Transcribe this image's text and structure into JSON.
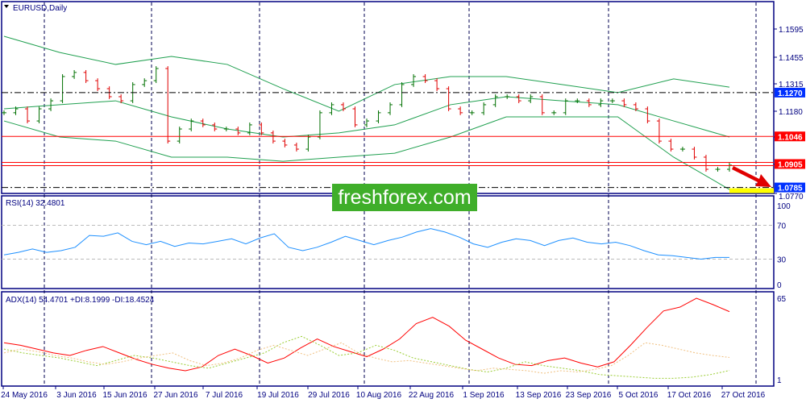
{
  "chart_title": "EURUSD,Daily",
  "watermark": "freshforex.com",
  "colors": {
    "bull_bar": "#007000",
    "bear_bar": "#e00000",
    "bands": "#20a050",
    "level_lines": "#ff0000",
    "rsi": "#1e90ff",
    "adx": "#ff0000",
    "plus_di": "#9acd32",
    "minus_di": "#f0c080",
    "frame": "#000080",
    "highlight": "#ffff00"
  },
  "chart_data": [
    {
      "type": "bar",
      "title": "EURUSD,Daily",
      "ylim": [
        1.077,
        1.173
      ],
      "y_ticks": [
        "1.1595",
        "1.1455",
        "1.1315",
        "1.1180",
        "1.1046",
        "1.0905",
        "1.0785",
        "1.0770"
      ],
      "x_ticks": [
        "24 May 2016",
        "3 Jun 2016",
        "15 Jun 2016",
        "27 Jun 2016",
        "7 Jul 2016",
        "19 Jul 2016",
        "29 Jul 2016",
        "10 Aug 2016",
        "22 Aug 2016",
        "1 Sep 2016",
        "13 Sep 2016",
        "23 Sep 2016",
        "5 Oct 2016",
        "17 Oct 2016",
        "27 Oct 2016"
      ],
      "closes": [
        1.1167,
        1.1187,
        1.1125,
        1.1187,
        1.1228,
        1.1352,
        1.1373,
        1.1331,
        1.129,
        1.1249,
        1.1228,
        1.1311,
        1.1331,
        1.1393,
        1.1022,
        1.1084,
        1.1125,
        1.1105,
        1.1084,
        1.1084,
        1.1064,
        1.1105,
        1.1064,
        1.1022,
        1.1002,
        1.0981,
        1.1043,
        1.1167,
        1.1208,
        1.1187,
        1.1105,
        1.1125,
        1.1167,
        1.1208,
        1.1311,
        1.1352,
        1.1331,
        1.129,
        1.1187,
        1.1167,
        1.1167,
        1.1208,
        1.1249,
        1.1249,
        1.1228,
        1.1249,
        1.1167,
        1.1167,
        1.1228,
        1.1228,
        1.1208,
        1.1228,
        1.1228,
        1.1208,
        1.1187,
        1.1125,
        1.1022,
        1.0981,
        1.0981,
        1.094,
        1.0878,
        1.0878,
        1.0899
      ],
      "bands": {
        "upper": [
          1.1558,
          1.1475,
          1.1414,
          1.1455,
          1.1414,
          1.129,
          1.1175,
          1.1311,
          1.1352,
          1.1352,
          1.1311,
          1.127,
          1.134,
          1.1298
        ],
        "middle": [
          1.1187,
          1.1208,
          1.1228,
          1.1146,
          1.1084,
          1.1043,
          1.1064,
          1.1105,
          1.1208,
          1.1249,
          1.1228,
          1.1208,
          1.1125,
          1.1043
        ],
        "lower": [
          1.1125,
          1.1043,
          1.1022,
          1.094,
          1.094,
          1.0919,
          1.094,
          1.096,
          1.1043,
          1.1146,
          1.1146,
          1.1146,
          1.094,
          1.0775
        ]
      },
      "levels": [
        {
          "value": 1.127,
          "label": "1.1270",
          "style": "dashdot",
          "tag_color": "#0030ff"
        },
        {
          "value": 1.1046,
          "label": "1.1046",
          "style": "solid",
          "tag_color": "#ff0000"
        },
        {
          "value": 1.0905,
          "label": "1.0905",
          "style": "double",
          "tag_color": "#ff0000"
        },
        {
          "value": 1.0785,
          "label": "1.0785",
          "style": "dashdot",
          "tag_color": "#0030ff"
        }
      ]
    },
    {
      "type": "line",
      "title": "RSI(14) 32.4801",
      "ylim": [
        0,
        100
      ],
      "y_ticks": [
        "100",
        "70",
        "30",
        "0"
      ],
      "levels": [
        70,
        30
      ],
      "values": [
        35,
        38,
        42,
        38,
        40,
        44,
        58,
        57,
        61,
        51,
        47,
        51,
        45,
        49,
        48,
        51,
        54,
        48,
        55,
        60,
        44,
        40,
        44,
        50,
        57,
        52,
        47,
        52,
        56,
        62,
        66,
        62,
        56,
        48,
        44,
        50,
        54,
        52,
        46,
        52,
        55,
        50,
        48,
        50,
        46,
        40,
        35,
        34,
        32,
        30,
        32,
        32
      ]
    },
    {
      "type": "line",
      "title": "ADX(14) 54.4701 +DI:8.1999 -DI:18.4524",
      "ylim": [
        1,
        70
      ],
      "y_ticks": [
        "65",
        "1"
      ],
      "series": [
        {
          "name": "ADX",
          "values": [
            30,
            28,
            25,
            22,
            20,
            24,
            27,
            22,
            17,
            13,
            10,
            8,
            11,
            20,
            25,
            20,
            14,
            18,
            26,
            33,
            27,
            23,
            19,
            25,
            33,
            45,
            50,
            43,
            32,
            25,
            18,
            13,
            12,
            16,
            18,
            14,
            11,
            15,
            28,
            42,
            55,
            58,
            65,
            60,
            54.47
          ]
        },
        {
          "name": "+DI",
          "values": [
            25,
            22,
            20,
            18,
            15,
            12,
            16,
            20,
            18,
            15,
            12,
            10,
            14,
            18,
            22,
            30,
            35,
            28,
            20,
            22,
            28,
            24,
            18,
            15,
            12,
            9,
            7,
            10,
            15,
            12,
            10,
            8,
            5,
            4,
            3,
            2,
            2,
            3,
            5,
            8.2
          ]
        },
        {
          "name": "-DI",
          "values": [
            22,
            25,
            23,
            20,
            18,
            15,
            13,
            15,
            18,
            20,
            22,
            16,
            12,
            14,
            18,
            24,
            28,
            24,
            20,
            25,
            30,
            22,
            18,
            15,
            16,
            14,
            12,
            10,
            8,
            10,
            9,
            8,
            6,
            8,
            7,
            9,
            12,
            20,
            30,
            28,
            25,
            22,
            20,
            18.45
          ]
        }
      ]
    }
  ]
}
